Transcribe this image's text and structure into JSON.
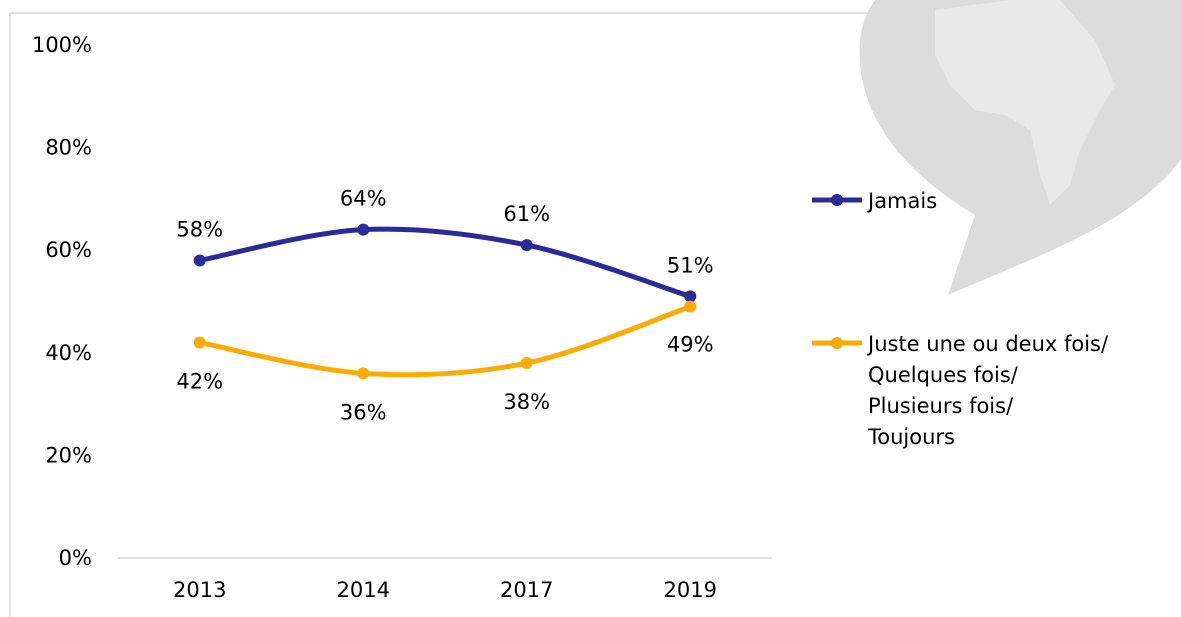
{
  "chart_data": {
    "type": "line",
    "categories": [
      "2013",
      "2014",
      "2017",
      "2019"
    ],
    "series": [
      {
        "name": "Jamais",
        "values": [
          58,
          64,
          61,
          51
        ],
        "labels": [
          "58%",
          "64%",
          "61%",
          "51%"
        ],
        "color": "#2b2a96"
      },
      {
        "name": "Juste une ou deux fois/ Quelques fois/ Plusieurs fois/ Toujours",
        "legend_lines": [
          "Juste une ou deux fois/",
          "Quelques fois/",
          "Plusieurs fois/",
          "Toujours"
        ],
        "values": [
          42,
          36,
          38,
          49
        ],
        "labels": [
          "42%",
          "36%",
          "38%",
          "49%"
        ],
        "color": "#ffaa00"
      }
    ],
    "yticks": [
      "0%",
      "20%",
      "40%",
      "60%",
      "80%",
      "100%"
    ],
    "ylim": [
      0,
      100
    ],
    "grid": false,
    "smooth": true,
    "legend_position": "right",
    "title": "",
    "xlabel": "",
    "ylabel": ""
  },
  "colors": {
    "axis": "#d9d9d9",
    "watermark": "#dcdcdc"
  },
  "icons": [
    "speech-bubble-africa-watermark"
  ]
}
